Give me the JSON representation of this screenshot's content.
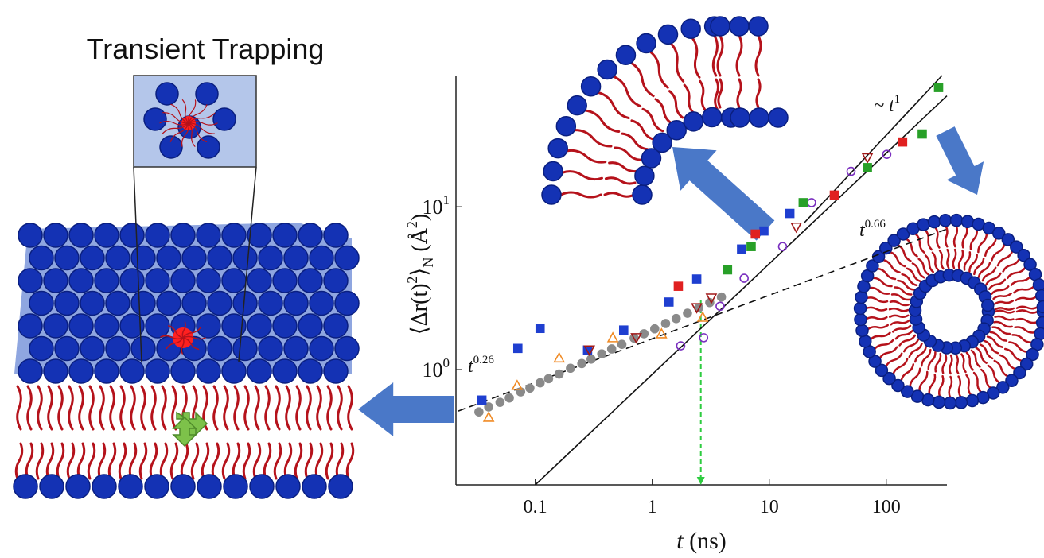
{
  "illustration": {
    "title": "Transient Trapping"
  },
  "chart_data": {
    "type": "scatter",
    "log_x": true,
    "log_y": true,
    "xlabel": {
      "italic": "t",
      "rest": " (ns)"
    },
    "ylabel": {
      "open": "⟨Δr(t)",
      "sup": "2",
      "close": "⟩",
      "sub": "N",
      "unit": " (Å",
      "unit_sup": "2",
      "end": ")"
    },
    "xlim": [
      0.021,
      330
    ],
    "ylim": [
      0.196,
      64
    ],
    "xticks": [
      0.1,
      1,
      10,
      100
    ],
    "yticks": [
      {
        "value": 1,
        "label": "10",
        "sup": "0"
      },
      {
        "value": 10,
        "label": "10",
        "sup": "1"
      }
    ],
    "series": [
      {
        "color": "#8a8a8a",
        "marker": "circle",
        "filled": true,
        "x": [
          0.033,
          0.04,
          0.05,
          0.06,
          0.075,
          0.09,
          0.11,
          0.13,
          0.16,
          0.2,
          0.25,
          0.3,
          0.37,
          0.45,
          0.55,
          0.7,
          0.85,
          1.05,
          1.3,
          1.6,
          2.0,
          2.5,
          3.1,
          3.9
        ],
        "values": [
          0.55,
          0.59,
          0.63,
          0.67,
          0.73,
          0.77,
          0.83,
          0.88,
          0.94,
          1.02,
          1.09,
          1.16,
          1.25,
          1.34,
          1.43,
          1.56,
          1.66,
          1.78,
          1.92,
          2.06,
          2.22,
          2.4,
          2.58,
          2.79
        ]
      },
      {
        "color": "#1f3fd0",
        "marker": "square",
        "filled": true,
        "x": [
          0.035,
          0.071,
          0.11,
          0.28,
          0.57,
          1.39,
          2.4,
          5.8,
          9.0,
          15
        ],
        "values": [
          0.65,
          1.35,
          1.79,
          1.32,
          1.75,
          2.6,
          3.6,
          5.5,
          7.1,
          9.1
        ]
      },
      {
        "color": "#f08a24",
        "marker": "triangle",
        "filled": false,
        "x": [
          0.04,
          0.07,
          0.16,
          0.46,
          1.2,
          2.7
        ],
        "values": [
          0.51,
          0.8,
          1.18,
          1.57,
          1.66,
          2.1
        ]
      },
      {
        "color": "#e02020",
        "marker": "square",
        "filled": true,
        "x": [
          1.67,
          7.6,
          36,
          138
        ],
        "values": [
          3.25,
          6.8,
          11.8,
          25
        ]
      },
      {
        "color": "#a01818",
        "marker": "triangle-down",
        "filled": false,
        "x": [
          0.29,
          0.73,
          2.4,
          3.2,
          17,
          69
        ],
        "values": [
          1.32,
          1.57,
          2.4,
          2.75,
          7.5,
          20
        ]
      },
      {
        "color": "#7a2fbf",
        "marker": "circle",
        "filled": false,
        "x": [
          1.75,
          2.75,
          3.8,
          6.1,
          13,
          23,
          50,
          101
        ],
        "values": [
          1.4,
          1.57,
          2.45,
          3.64,
          5.7,
          10.6,
          16.5,
          21
        ]
      },
      {
        "color": "#28a028",
        "marker": "square",
        "filled": true,
        "x": [
          4.4,
          7.0,
          19.5,
          69,
          203,
          280
        ],
        "values": [
          4.1,
          5.7,
          10.6,
          17.4,
          28,
          54
        ]
      }
    ],
    "fits": [
      {
        "dash": true,
        "x": [
          0.022,
          330
        ],
        "values": [
          0.557,
          7.3
        ]
      },
      {
        "dash": false,
        "x": [
          0.1,
          330
        ],
        "values": [
          0.196,
          48
        ]
      },
      {
        "dash": false,
        "x": [
          20,
          300
        ],
        "values": [
          8,
          64
        ]
      }
    ],
    "vline": {
      "x": 2.6,
      "color": "#2ecc40"
    },
    "annotations": [
      {
        "text": "t",
        "sup": "0.26"
      },
      {
        "text": "~ t",
        "sup": "1"
      },
      {
        "text": "t",
        "sup": "0.66"
      }
    ]
  }
}
